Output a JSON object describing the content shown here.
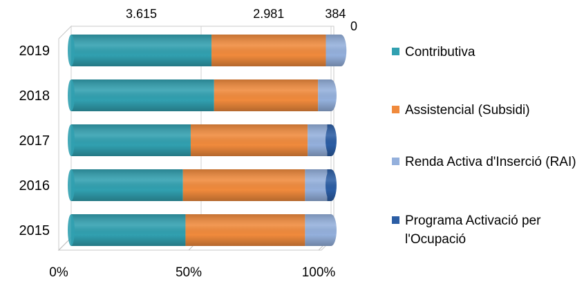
{
  "chart_data": {
    "type": "bar",
    "orientation": "horizontal",
    "stacked": "percent",
    "categories": [
      "2015",
      "2016",
      "2017",
      "2018",
      "2019"
    ],
    "series": [
      {
        "name": "Contributiva",
        "color": "#31a0b0",
        "values": [
          44,
          43,
          46,
          55,
          54
        ]
      },
      {
        "name": "Assistencial (Subsidi)",
        "color": "#f08a3c",
        "values": [
          46,
          47,
          45,
          40,
          44
        ]
      },
      {
        "name": "Renda Activa d'Inserció (RAI)",
        "color": "#94b0dc",
        "values": [
          10,
          8.5,
          7.5,
          5,
          5.8
        ]
      },
      {
        "name": "Programa Activació per l'Ocupació",
        "color": "#2b5da4",
        "values": [
          0,
          1.5,
          1.5,
          0,
          0
        ]
      }
    ],
    "data_labels": {
      "category": "2019",
      "values": [
        "3.615",
        "2.981",
        "384",
        "0"
      ]
    },
    "xticks": [
      "0%",
      "50%",
      "100%"
    ],
    "xlim": [
      0,
      100
    ],
    "grid": true,
    "legend": "right"
  }
}
